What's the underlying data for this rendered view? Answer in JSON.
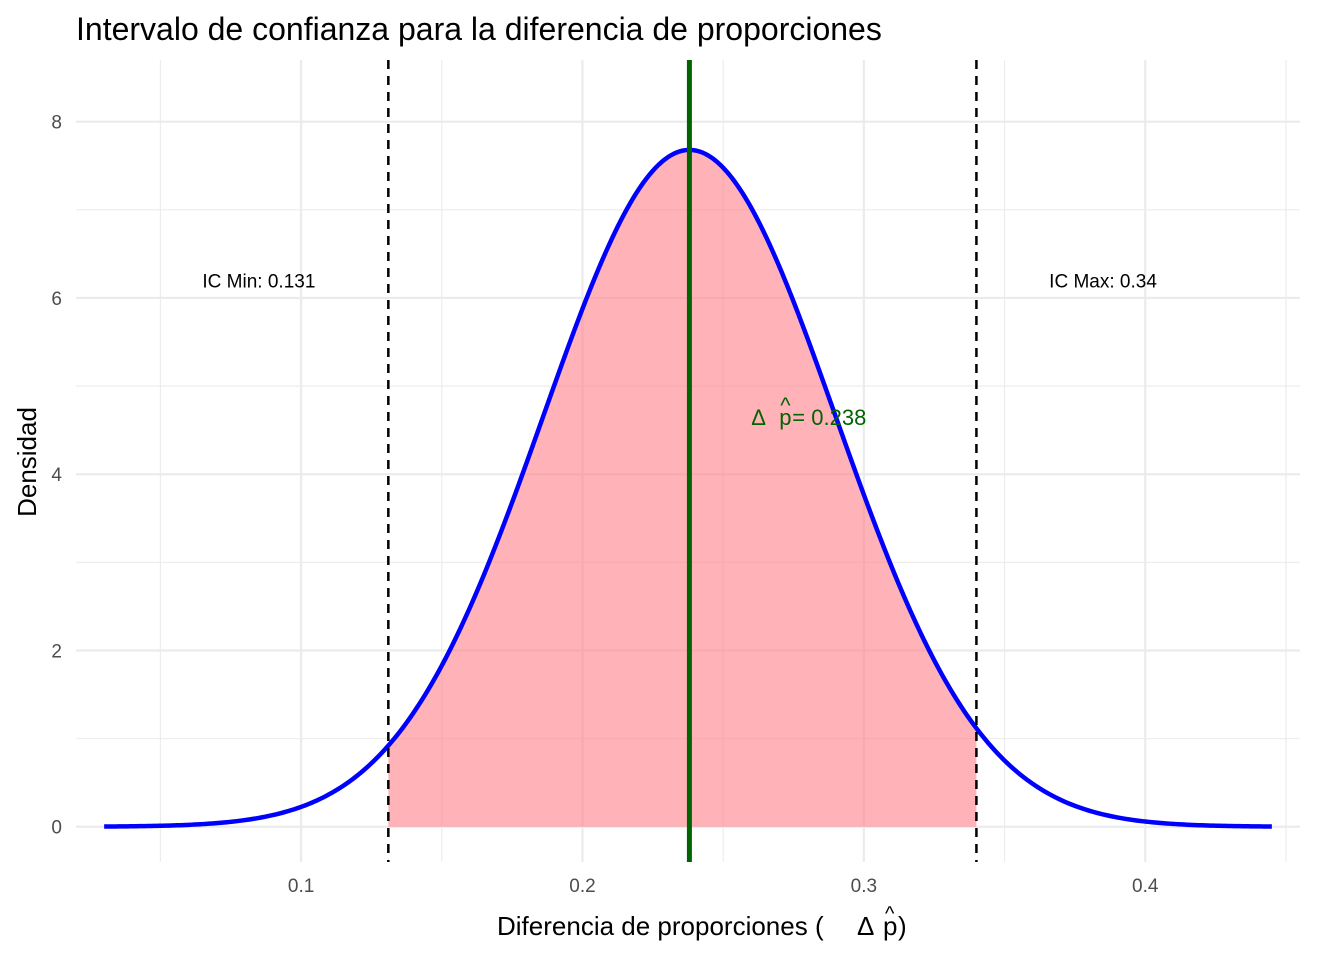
{
  "chart_data": {
    "type": "area",
    "title": "Intervalo de confianza para la diferencia de proporciones",
    "xlabel_main": "Diferencia de proporciones (",
    "xlabel_symbol": "Δ",
    "xlabel_hat": "p",
    "xlabel_close": ")",
    "ylabel": "Densidad",
    "xlim": [
      0.02,
      0.455
    ],
    "ylim": [
      -0.4,
      8.7
    ],
    "x_ticks": [
      0.1,
      0.2,
      0.3,
      0.4
    ],
    "x_tick_labels": [
      "0.1",
      "0.2",
      "0.3",
      "0.4"
    ],
    "x_minor_ticks": [
      0.05,
      0.15,
      0.25,
      0.35,
      0.45
    ],
    "y_ticks": [
      0,
      2,
      4,
      6,
      8
    ],
    "y_tick_labels": [
      "0",
      "2",
      "4",
      "6",
      "8"
    ],
    "y_minor_ticks": [
      1,
      3,
      5,
      7
    ],
    "grid": true,
    "distribution": {
      "type": "normal",
      "mean": 0.238,
      "peak_density": 7.68,
      "x_range": [
        0.03,
        0.445
      ]
    },
    "ci_min": 0.131,
    "ci_max": 0.34,
    "annotations": {
      "ic_min_text": "IC Min: 0.131",
      "ic_min_x": 0.085,
      "ic_min_y": 6.2,
      "ic_max_text": "IC Max: 0.34",
      "ic_max_x": 0.385,
      "ic_max_y": 6.2,
      "estimate_symbol": "Δ",
      "estimate_hat": "p",
      "estimate_value": " = 0.238",
      "estimate_x": 0.26,
      "estimate_y": 4.65
    },
    "colors": {
      "curve": "#0000ff",
      "fill": "#ff8088",
      "estimate_line": "#006400",
      "ci_lines": "#000000",
      "annotation_estimate": "#006400"
    }
  }
}
